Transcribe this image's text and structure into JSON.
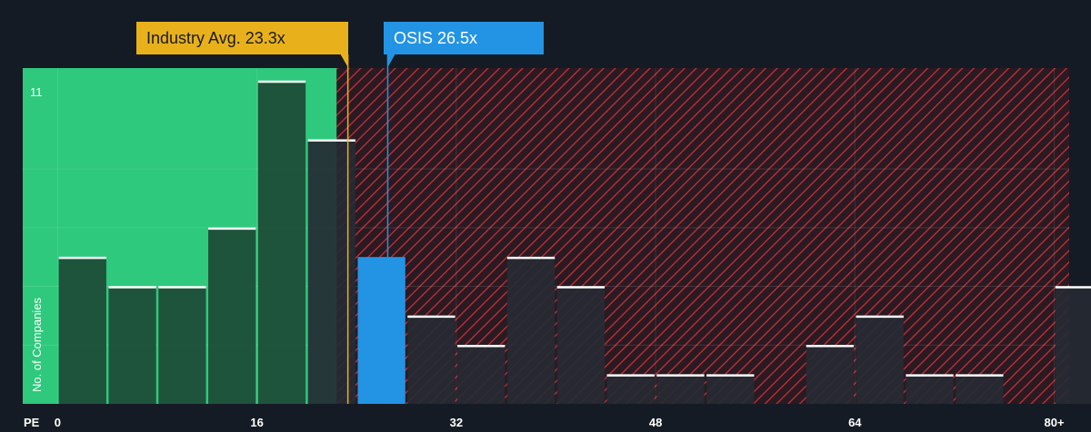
{
  "chart_data": {
    "type": "bar",
    "x_axis_label": "PE",
    "y_axis_label": "No. of Companies",
    "y_tick_label": "11",
    "x_ticks": [
      {
        "value": 0,
        "label": "0"
      },
      {
        "value": 16,
        "label": "16"
      },
      {
        "value": 32,
        "label": "32"
      },
      {
        "value": 48,
        "label": "48"
      },
      {
        "value": 64,
        "label": "64"
      },
      {
        "value": 80,
        "label": "80+"
      }
    ],
    "x_range": [
      -2.8,
      81.2
    ],
    "y_range": [
      0,
      11.5
    ],
    "bin_width": 4,
    "bins": [
      {
        "start": 0,
        "count": 5
      },
      {
        "start": 4,
        "count": 4
      },
      {
        "start": 8,
        "count": 4
      },
      {
        "start": 12,
        "count": 6
      },
      {
        "start": 16,
        "count": 11
      },
      {
        "start": 20,
        "count": 9
      },
      {
        "start": 24,
        "count": 5,
        "highlight": true
      },
      {
        "start": 28,
        "count": 3
      },
      {
        "start": 32,
        "count": 2
      },
      {
        "start": 36,
        "count": 5
      },
      {
        "start": 40,
        "count": 4
      },
      {
        "start": 44,
        "count": 1
      },
      {
        "start": 48,
        "count": 1
      },
      {
        "start": 52,
        "count": 1
      },
      {
        "start": 56,
        "count": 0
      },
      {
        "start": 60,
        "count": 2
      },
      {
        "start": 64,
        "count": 3
      },
      {
        "start": 68,
        "count": 1
      },
      {
        "start": 72,
        "count": 1
      },
      {
        "start": 76,
        "count": 0
      },
      {
        "start": 80,
        "count": 4
      }
    ],
    "fair_zone_end": 22.4,
    "industry_avg": {
      "label": "Industry Avg. 23.3x",
      "value": 23.3
    },
    "company": {
      "label": "OSIS 26.5x",
      "value": 26.5
    },
    "colors": {
      "background": "#151b24",
      "fair_zone": "#2ec97c",
      "bar_in_fair": "#1e4a36",
      "bar_out": "#262a33",
      "bar_top": "#ffffff",
      "highlight": "#2394e4",
      "hatch": "#c8323c",
      "hatch_bg": "#2a1a22",
      "industry": "#e8b11c",
      "company": "#2394e4"
    }
  }
}
